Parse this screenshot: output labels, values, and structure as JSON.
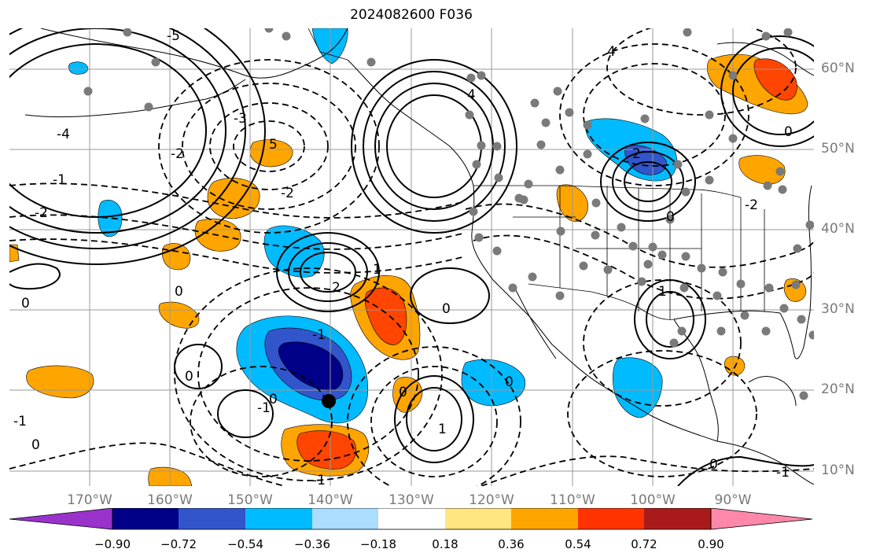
{
  "title": "2024082600 F036",
  "lon_labels": [
    "170°W",
    "160°W",
    "150°W",
    "140°W",
    "130°W",
    "120°W",
    "110°W",
    "100°W",
    "90°W"
  ],
  "lat_labels": [
    "60°N",
    "50°N",
    "40°N",
    "30°N",
    "20°N",
    "10°N"
  ],
  "colorbar": {
    "tick_labels": [
      "−0.90",
      "−0.72",
      "−0.54",
      "−0.36",
      "−0.18",
      "0.18",
      "0.36",
      "0.54",
      "0.72",
      "0.90"
    ],
    "colors": [
      "#9933cc",
      "#000088",
      "#3355cc",
      "#00bbff",
      "#aaddff",
      "#ffffff",
      "#ffe680",
      "#ffa500",
      "#ff3300",
      "#aa1a1a",
      "#ff88aa"
    ]
  },
  "contour_labels": [
    "-5",
    "-4",
    "-3",
    "-2",
    "-1",
    "0",
    "1",
    "2",
    "4",
    "5"
  ],
  "fill_colors": {
    "positive_low": "#ffa500",
    "positive_mid": "#ff4500",
    "negative_low": "#00bbff",
    "negative_mid": "#3355cc",
    "negative_high": "#000088"
  }
}
